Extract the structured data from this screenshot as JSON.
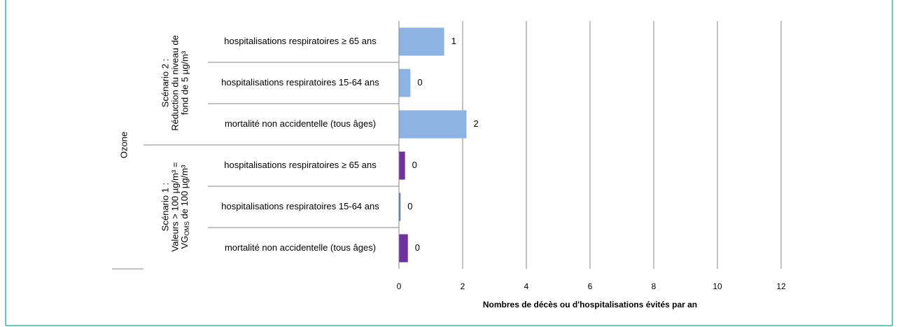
{
  "chart_data": {
    "type": "barh",
    "group": "Ozone",
    "scenarios": [
      {
        "lines": [
          "Scénario 2 :",
          "Réduction du niveau de",
          "fond de 5 µg/m³"
        ]
      },
      {
        "lines": [
          "Scénario 1 :",
          "Valeurs > 100 µg/m³ =",
          {
            "text": "VG",
            "sub": "OMS",
            "rest": " de 100 µg/m³"
          }
        ]
      }
    ],
    "categories": [
      "hospitalisations respiratoires ≥ 65 ans",
      "hospitalisations respiratoires 15-64 ans",
      "mortalité non accidentelle (tous âges)",
      "hospitalisations respiratoires ≥ 65 ans",
      "hospitalisations respiratoires 15-64 ans",
      "mortalité non accidentelle (tous âges)"
    ],
    "values": [
      1.42,
      0.36,
      2.12,
      0.19,
      0.05,
      0.28
    ],
    "value_labels": [
      "1",
      "0",
      "2",
      "0",
      "0",
      "0"
    ],
    "colors": [
      "#8db3e2",
      "#8db3e2",
      "#8db3e2",
      "#7030a0",
      "#4f81bd",
      "#7030a0"
    ],
    "xlabel": "Nombres de décès ou d'hospitalisations évités par an",
    "xlim": [
      0,
      12
    ],
    "xticks": [
      0,
      2,
      4,
      6,
      8,
      10,
      12
    ],
    "grid": true
  }
}
